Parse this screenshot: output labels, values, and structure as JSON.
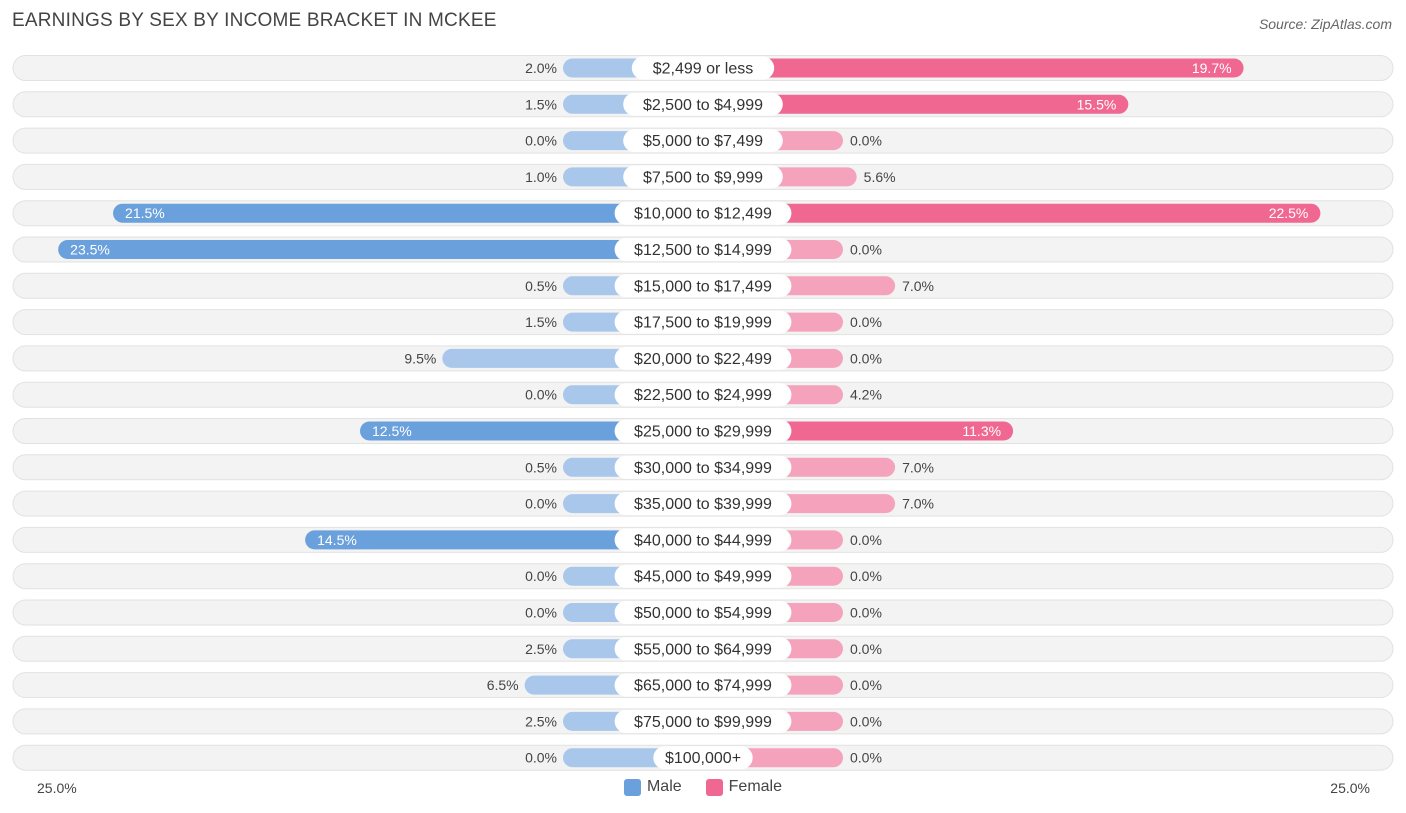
{
  "title": "EARNINGS BY SEX BY INCOME BRACKET IN MCKEE",
  "source": "Source: ZipAtlas.com",
  "colors": {
    "male": "#6aa0dc",
    "male_light": "#a9c7ea",
    "female": "#f06891",
    "female_light": "#f5a3bd",
    "row_bg": "#efefef"
  },
  "legend": {
    "male": "Male",
    "female": "Female"
  },
  "axis": {
    "left_label": "25.0%",
    "right_label": "25.0%"
  },
  "chart_data": {
    "type": "bar",
    "orientation": "horizontal-diverging",
    "title": "EARNINGS BY SEX BY INCOME BRACKET IN MCKEE",
    "xlim": [
      -25,
      25
    ],
    "unit": "%",
    "categories": [
      "$2,499 or less",
      "$2,500 to $4,999",
      "$5,000 to $7,499",
      "$7,500 to $9,999",
      "$10,000 to $12,499",
      "$12,500 to $14,999",
      "$15,000 to $17,499",
      "$17,500 to $19,999",
      "$20,000 to $22,499",
      "$22,500 to $24,999",
      "$25,000 to $29,999",
      "$30,000 to $34,999",
      "$35,000 to $39,999",
      "$40,000 to $44,999",
      "$45,000 to $49,999",
      "$50,000 to $54,999",
      "$55,000 to $64,999",
      "$65,000 to $74,999",
      "$75,000 to $99,999",
      "$100,000+"
    ],
    "series": [
      {
        "name": "Male",
        "values": [
          2.0,
          1.5,
          0.0,
          1.0,
          21.5,
          23.5,
          0.5,
          1.5,
          9.5,
          0.0,
          12.5,
          0.5,
          0.0,
          14.5,
          0.0,
          0.0,
          2.5,
          6.5,
          2.5,
          0.0
        ]
      },
      {
        "name": "Female",
        "values": [
          19.7,
          15.5,
          0.0,
          5.6,
          22.5,
          0.0,
          7.0,
          0.0,
          0.0,
          4.2,
          11.3,
          7.0,
          7.0,
          0.0,
          0.0,
          0.0,
          0.0,
          0.0,
          0.0,
          0.0
        ]
      }
    ],
    "value_labels": {
      "male": [
        "2.0%",
        "1.5%",
        "0.0%",
        "1.0%",
        "21.5%",
        "23.5%",
        "0.5%",
        "1.5%",
        "9.5%",
        "0.0%",
        "12.5%",
        "0.5%",
        "0.0%",
        "14.5%",
        "0.0%",
        "0.0%",
        "2.5%",
        "6.5%",
        "2.5%",
        "0.0%"
      ],
      "female": [
        "19.7%",
        "15.5%",
        "0.0%",
        "5.6%",
        "22.5%",
        "0.0%",
        "7.0%",
        "0.0%",
        "0.0%",
        "4.2%",
        "11.3%",
        "7.0%",
        "7.0%",
        "0.0%",
        "0.0%",
        "0.0%",
        "0.0%",
        "0.0%",
        "0.0%",
        "0.0%"
      ]
    }
  }
}
